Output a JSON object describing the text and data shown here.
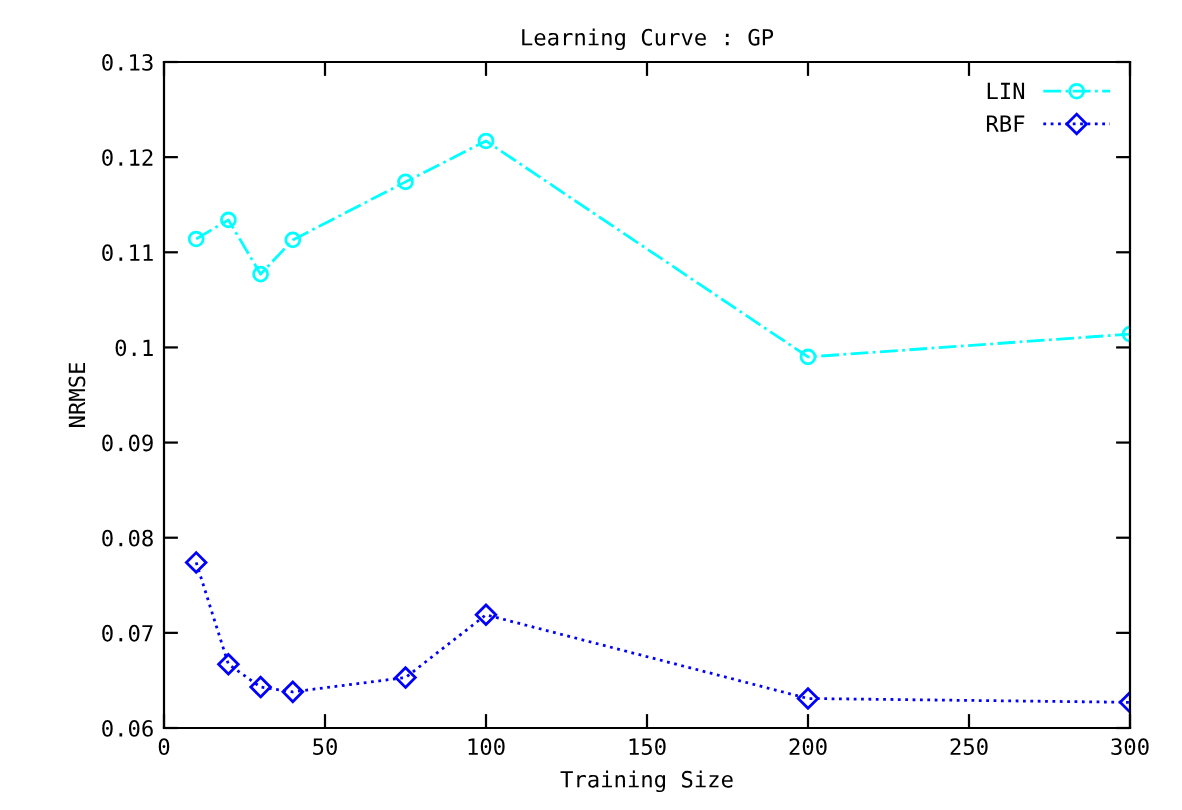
{
  "chart_data": {
    "type": "line",
    "title": "Learning Curve : GP",
    "xlabel": "Training Size",
    "ylabel": "NRMSE",
    "x": [
      10,
      20,
      30,
      40,
      75,
      100,
      200,
      300
    ],
    "series": [
      {
        "name": "LIN",
        "color": "#00ffff",
        "marker": "circle",
        "line_style": "dashed",
        "values": [
          0.1114,
          0.1134,
          0.1077,
          0.1113,
          0.1174,
          0.1217,
          0.099,
          0.1014
        ]
      },
      {
        "name": "RBF",
        "color": "#0000ff",
        "marker": "diamond",
        "line_style": "dotted",
        "values": [
          0.0774,
          0.0667,
          0.0643,
          0.0638,
          0.0653,
          0.0719,
          0.0631,
          0.0627
        ]
      }
    ],
    "xlim": [
      0,
      300
    ],
    "xticks": [
      0,
      50,
      100,
      150,
      200,
      250,
      300
    ],
    "ylim": [
      0.06,
      0.13
    ],
    "yticks": [
      0.06,
      0.07,
      0.08,
      0.09,
      0.1,
      0.11,
      0.12,
      0.13
    ],
    "legend": "top right",
    "grid": false
  }
}
